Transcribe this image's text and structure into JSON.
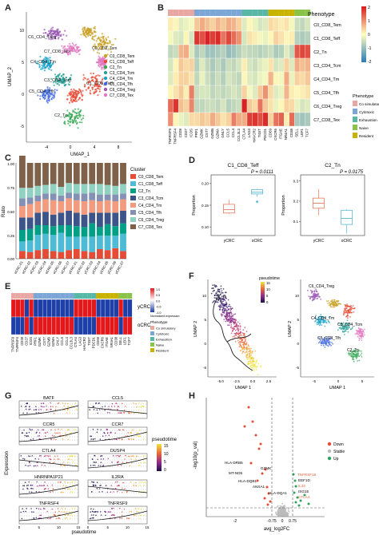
{
  "panel_labels": [
    "A",
    "B",
    "C",
    "D",
    "E",
    "F",
    "G",
    "H"
  ],
  "colors": {
    "C0": "#c9a227",
    "C1": "#e64b35",
    "C2": "#34a853",
    "C3": "#2aa198",
    "C4": "#1aa3c8",
    "C5": "#4169e1",
    "C6": "#9b59b6",
    "C7": "#e377c2",
    "heat_low": "#2c7bb6",
    "heat_mid": "#ffffbf",
    "heat_high": "#d7191c",
    "ph_costim": "#e8a7a3",
    "ph_cyto": "#7ba6d6",
    "ph_exh": "#58b7a5",
    "ph_naive": "#8bc34a",
    "ph_res": "#c8b400",
    "yCRC": "#e9795b",
    "oCRC": "#5bb8d5",
    "down": "#e64b35",
    "stable": "#bbbbbb",
    "up": "#2ca25f"
  },
  "panelA": {
    "xlabel": "UMAP_1",
    "ylabel": "UMAP_2",
    "xticks": [
      "-4",
      "0",
      "4",
      "8"
    ],
    "yticks": [
      "10",
      "5",
      "0",
      "-5"
    ],
    "clusters": [
      {
        "name": "C0_CD8_Tem",
        "color": "#c9a227"
      },
      {
        "name": "C1_CD8_Teff",
        "color": "#e64b35"
      },
      {
        "name": "C2_Tn",
        "color": "#34a853"
      },
      {
        "name": "C3_CD4_Tcm",
        "color": "#2aa198"
      },
      {
        "name": "C4_CD4_Tm",
        "color": "#1aa3c8"
      },
      {
        "name": "C5_CD4_Tfh",
        "color": "#4169e1"
      },
      {
        "name": "C6_CD4_Treg",
        "color": "#9b59b6"
      },
      {
        "name": "C7_CD8_Tex",
        "color": "#e377c2"
      }
    ],
    "onplot": [
      "C6_CD4_Treg",
      "C7_CD8_Tex",
      "C4_CD4_Tm",
      "C3_CD4_Tcm",
      "C5_CD4_Tfh",
      "C2_Tn"
    ],
    "onplot_right": [
      "C0_CD8_Tem",
      "C1_CD8_Teff"
    ]
  },
  "panelB": {
    "phenotype_title": "Phenotype",
    "rows": [
      "C0_CD8_Tem",
      "C1_CD8_Teff",
      "C2_Tn",
      "C3_CD4_Tcm",
      "C4_CD4_Tm",
      "C5_CD4_Tfh",
      "C6_CD4_Treg",
      "C7_CD8_Tex"
    ],
    "genes": [
      "TNFRSF9",
      "TNFRSF4",
      "CD28",
      "CD27",
      "ICOS",
      "PRF1",
      "GZMK",
      "CST7",
      "GZMB",
      "GZMA",
      "GNLY",
      "CCL5",
      "CCL4",
      "CCL3L3",
      "CTLA4",
      "LAG3",
      "HAVCR2",
      "TIGIT",
      "PDCD1",
      "CD69",
      "CXCR6",
      "ITGAE",
      "NR4A1",
      "CD38",
      "SELL",
      "LEF1",
      "TCF7"
    ],
    "colorbar": [
      "2",
      "1",
      "0",
      "-1",
      "-2"
    ],
    "legend_title": "Phenotype",
    "legend": [
      "Co simulatory",
      "Cytotoxic",
      "Exhaustion",
      "Naive",
      "Resident"
    ],
    "matrix": [
      [
        0.2,
        0.1,
        -0.3,
        -0.2,
        -0.1,
        0.6,
        0.9,
        0.7,
        0.5,
        0.8,
        0.6,
        0.9,
        0.8,
        0.5,
        -0.3,
        0.1,
        -0.2,
        -0.4,
        -0.3,
        0.4,
        0.3,
        0.2,
        0.3,
        -0.1,
        -0.5,
        -0.6,
        -0.4
      ],
      [
        -0.1,
        -0.3,
        -0.4,
        0.1,
        -0.4,
        2.2,
        1.9,
        2.4,
        2.1,
        2.3,
        1.5,
        2.0,
        1.6,
        1.2,
        -0.4,
        0.3,
        0.2,
        -0.1,
        -0.2,
        0.1,
        0.5,
        0.3,
        0.1,
        0.2,
        -0.7,
        -0.8,
        -0.7
      ],
      [
        -0.6,
        -0.5,
        0.8,
        0.9,
        -0.3,
        -0.8,
        -0.6,
        -0.9,
        -0.9,
        -0.8,
        -0.7,
        -1.0,
        -0.9,
        -0.7,
        -0.5,
        -0.6,
        -0.6,
        -0.7,
        -0.6,
        -0.5,
        -0.8,
        -0.7,
        -0.3,
        -0.6,
        1.8,
        2.0,
        1.9
      ],
      [
        -0.4,
        0.1,
        0.6,
        0.4,
        0.5,
        -0.7,
        -0.3,
        -0.6,
        -0.8,
        -0.6,
        -0.8,
        -0.5,
        -0.6,
        -0.4,
        0.2,
        -0.4,
        -0.5,
        -0.3,
        -0.2,
        0.3,
        -0.4,
        -0.3,
        0.5,
        -0.3,
        0.9,
        0.7,
        0.8
      ],
      [
        -0.3,
        0.2,
        0.5,
        0.5,
        0.3,
        -0.6,
        -0.2,
        -0.5,
        -0.7,
        -0.5,
        -0.7,
        -0.4,
        -0.5,
        -0.6,
        0.1,
        -0.3,
        -0.4,
        -0.2,
        -0.1,
        0.8,
        0.1,
        -0.1,
        0.9,
        -0.2,
        0.5,
        0.4,
        0.6
      ],
      [
        0.1,
        0.3,
        0.6,
        0.2,
        1.4,
        -0.5,
        -0.4,
        -0.4,
        -0.6,
        -0.5,
        -0.6,
        -0.5,
        -0.4,
        -0.5,
        0.5,
        -0.1,
        -0.3,
        0.6,
        1.2,
        0.4,
        -0.3,
        -0.2,
        0.8,
        0.2,
        0.1,
        0.2,
        0.3
      ],
      [
        1.6,
        2.2,
        0.7,
        0.5,
        1.3,
        -0.6,
        -0.6,
        -0.5,
        -0.5,
        -0.6,
        -0.4,
        -0.7,
        -0.6,
        -0.5,
        2.4,
        0.6,
        0.4,
        1.5,
        0.6,
        0.3,
        -0.2,
        0.1,
        0.5,
        0.4,
        -0.2,
        -0.4,
        -0.3
      ],
      [
        1.2,
        0.1,
        -0.2,
        -0.3,
        0.4,
        0.4,
        0.6,
        0.5,
        0.9,
        0.6,
        0.3,
        0.5,
        1.4,
        0.9,
        0.9,
        2.1,
        2.2,
        1.9,
        2.3,
        0.5,
        1.5,
        1.7,
        0.2,
        1.6,
        -0.8,
        -0.9,
        -0.8
      ]
    ],
    "gene_phenotype": [
      "ph_costim",
      "ph_costim",
      "ph_costim",
      "ph_costim",
      "ph_costim",
      "ph_cyto",
      "ph_cyto",
      "ph_cyto",
      "ph_cyto",
      "ph_cyto",
      "ph_cyto",
      "ph_cyto",
      "ph_cyto",
      "ph_cyto",
      "ph_exh",
      "ph_exh",
      "ph_exh",
      "ph_exh",
      "ph_exh",
      "ph_res",
      "ph_res",
      "ph_res",
      "ph_res",
      "ph_res",
      "ph_naive",
      "ph_naive",
      "ph_naive"
    ]
  },
  "panelC": {
    "ylabel": "Ratio",
    "yticks": [
      "1.00",
      "0.75",
      "0.50",
      "0.25",
      "0.00"
    ],
    "legend_title": "Cluster",
    "clusters": [
      "C0_CD8_Tem",
      "C1_CD8_Teff",
      "C2_Tn",
      "C3_CD4_Tcm",
      "C4_CD4_Tm",
      "C5_CD4_Tfh",
      "C6_CD4_Treg",
      "C7_CD8_Tex"
    ],
    "samples": [
      "oCRC-01",
      "oCRC-02",
      "oCRC-03",
      "oCRC-04",
      "oCRC-05",
      "oCRC-06",
      "oCRC-07",
      "yCRC-01",
      "yCRC-02",
      "yCRC-03",
      "yCRC-04",
      "yCRC-05",
      "yCRC-06",
      "yCRC-07"
    ],
    "colors": [
      "#e64b35",
      "#4dbbd5",
      "#00a087",
      "#3c5488",
      "#f39b7f",
      "#8491b4",
      "#91d1c2",
      "#7e6148"
    ],
    "stack": [
      [
        0.08,
        0.1,
        0.12,
        0.13,
        0.12,
        0.08,
        0.11,
        0.36
      ],
      [
        0.07,
        0.12,
        0.12,
        0.12,
        0.14,
        0.07,
        0.1,
        0.26
      ],
      [
        0.09,
        0.16,
        0.1,
        0.13,
        0.12,
        0.06,
        0.1,
        0.24
      ],
      [
        0.1,
        0.16,
        0.09,
        0.14,
        0.13,
        0.06,
        0.09,
        0.23
      ],
      [
        0.08,
        0.17,
        0.09,
        0.12,
        0.15,
        0.07,
        0.1,
        0.22
      ],
      [
        0.07,
        0.2,
        0.08,
        0.13,
        0.12,
        0.06,
        0.09,
        0.25
      ],
      [
        0.09,
        0.14,
        0.12,
        0.15,
        0.13,
        0.06,
        0.1,
        0.21
      ],
      [
        0.1,
        0.13,
        0.11,
        0.14,
        0.13,
        0.07,
        0.1,
        0.22
      ],
      [
        0.08,
        0.15,
        0.1,
        0.13,
        0.14,
        0.08,
        0.1,
        0.22
      ],
      [
        0.07,
        0.16,
        0.14,
        0.11,
        0.13,
        0.08,
        0.09,
        0.22
      ],
      [
        0.1,
        0.14,
        0.09,
        0.15,
        0.12,
        0.07,
        0.11,
        0.22
      ],
      [
        0.09,
        0.15,
        0.12,
        0.12,
        0.13,
        0.06,
        0.1,
        0.23
      ],
      [
        0.11,
        0.13,
        0.1,
        0.14,
        0.12,
        0.07,
        0.09,
        0.24
      ],
      [
        0.08,
        0.18,
        0.11,
        0.13,
        0.12,
        0.06,
        0.1,
        0.22
      ]
    ]
  },
  "panelD": {
    "plots": [
      {
        "title": "C1_CD8_Teff",
        "pvalue": "P = 0.0111",
        "ylabel": "Proportion",
        "yticks": [
          "0.20",
          "0.15",
          "0.10"
        ],
        "ylim": [
          0.08,
          0.22
        ],
        "groups": [
          {
            "name": "yCRC",
            "q1": 0.132,
            "med": 0.14,
            "q3": 0.152,
            "min": 0.13,
            "max": 0.162
          },
          {
            "name": "oCRC",
            "q1": 0.176,
            "med": 0.18,
            "q3": 0.186,
            "min": 0.17,
            "max": 0.188,
            "out": 0.158
          }
        ]
      },
      {
        "title": "C2_Tn",
        "pvalue": "P = 0.0175",
        "ylabel": "Proportion",
        "yticks": [
          "0.3",
          "0.2",
          "0.1"
        ],
        "ylim": [
          0.03,
          0.33
        ],
        "groups": [
          {
            "name": "yCRC",
            "q1": 0.165,
            "med": 0.19,
            "q3": 0.215,
            "min": 0.13,
            "max": 0.26
          },
          {
            "name": "oCRC",
            "q1": 0.085,
            "med": 0.115,
            "q3": 0.155,
            "min": 0.04,
            "max": 0.16
          }
        ]
      }
    ],
    "xlabels": [
      "yCRC",
      "oCRC"
    ]
  },
  "panelE": {
    "row_labels": [
      "yCRC",
      "oCRC"
    ],
    "genes": [
      "TNFRSF9",
      "TNFRSF4",
      "CD28",
      "CD27",
      "ICOS",
      "PRF1",
      "GZMK",
      "CST7",
      "GZMB",
      "GZMA",
      "GNLY",
      "CCL5",
      "CCL4",
      "CCL3L3",
      "CTLA4",
      "LAG3",
      "HAVCR2",
      "TIGIT",
      "PDCD1",
      "CD69",
      "CXCR6",
      "ITGAE",
      "NR4A1",
      "CD38",
      "SELL",
      "LEF1",
      "TCF7"
    ],
    "yrow": [
      1,
      1,
      1,
      0,
      1,
      0,
      0,
      0,
      0,
      0,
      0,
      0,
      0,
      0,
      1,
      1,
      1,
      1,
      1,
      0,
      0,
      0,
      0,
      0,
      1,
      0,
      0
    ],
    "colorbar": [
      "1.0",
      "0.5",
      "0.0",
      "-0.5",
      "-1.0"
    ],
    "colorbar_title": "Normalized expression",
    "legend_title": "Phenotype",
    "legend": [
      "Co simulatory",
      "Cytotoxic",
      "Exhaustion",
      "Naive",
      "Resident"
    ]
  },
  "panelF": {
    "legend_title": "pseudotime",
    "legend_ticks": [
      "15",
      "10",
      "5",
      "0"
    ],
    "left": {
      "xlabel": "UMAP 1",
      "ylabel": "UMAP 2",
      "xticks": [
        "-5.0",
        "-2.5",
        "0.0",
        "2.5"
      ],
      "yticks": [
        "10",
        "5",
        "0",
        "-5"
      ]
    },
    "right": {
      "xlabel": "UMAP 1",
      "ylabel": "UMAP 2",
      "xticks": [
        "-5",
        "0",
        "5"
      ],
      "yticks": [
        "10",
        "5",
        "0",
        "-5"
      ],
      "labels": [
        "C6_CD4_Treg",
        "C4_CD4_Tm",
        "C3_CD4_Tcm",
        "C5_CD4_Tfh",
        "C2_Tn"
      ]
    }
  },
  "panelG": {
    "genes": [
      "BATF",
      "CCL5",
      "CCR5",
      "CCR7",
      "CTLA4",
      "DUSP4",
      "HNRNPA1P21",
      "IL2RA",
      "TNFRSF4",
      "TNFRSF9"
    ],
    "ylabel": "Expression",
    "xlabel": "pseudotime",
    "legend_title": "pseudotime",
    "legend_ticks": [
      "15",
      "10",
      "5",
      "0"
    ],
    "xticks": [
      "0",
      "5",
      "10",
      "15"
    ]
  },
  "panelH": {
    "xlabel": "avg_log2FC",
    "ylabel": "-log10(p_val)",
    "xticks": [
      "-2",
      "-0.75",
      "0",
      "0.75"
    ],
    "legend": [
      "Down",
      "Stable",
      "Up"
    ],
    "labels_down": [
      "HLA-DRB5",
      "MT-ND5",
      "GZMK",
      "HLA-DQB1",
      "ANXA1",
      "HLA-DQA1"
    ],
    "labels_up": [
      "TNFRSF18",
      "EEF1D",
      "IL32",
      "ISG15",
      "CTLA4"
    ]
  }
}
